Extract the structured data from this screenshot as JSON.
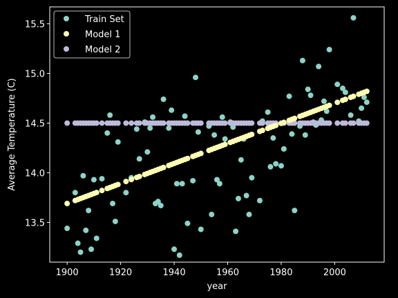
{
  "chart_data": {
    "type": "scatter",
    "xlabel": "year",
    "ylabel": "Average Temperature (C)",
    "xlim": [
      1893.5,
      2018.5
    ],
    "ylim": [
      13.1,
      15.67
    ],
    "xticks": [
      1900,
      1920,
      1940,
      1960,
      1980,
      2000
    ],
    "yticks": [
      13.5,
      14.0,
      14.5,
      15.0,
      15.5
    ],
    "xtick_labels": [
      "1900",
      "1920",
      "1940",
      "1960",
      "1980",
      "2000"
    ],
    "ytick_labels": [
      "13.5",
      "14.0",
      "14.5",
      "15.0",
      "15.5"
    ],
    "grid": false,
    "legend": {
      "placement": "top-left"
    },
    "series": [
      {
        "name": "Train Set",
        "color": "#8dd3c7",
        "points": [
          [
            1900,
            13.44
          ],
          [
            1903,
            13.8
          ],
          [
            1904,
            13.29
          ],
          [
            1905,
            13.2
          ],
          [
            1906,
            13.97
          ],
          [
            1907,
            13.42
          ],
          [
            1908,
            13.62
          ],
          [
            1909,
            13.23
          ],
          [
            1910,
            13.93
          ],
          [
            1911,
            13.34
          ],
          [
            1913,
            13.94
          ],
          [
            1915,
            14.4
          ],
          [
            1916,
            14.58
          ],
          [
            1917,
            13.69
          ],
          [
            1918,
            13.51
          ],
          [
            1919,
            14.31
          ],
          [
            1922,
            13.8
          ],
          [
            1924,
            13.95
          ],
          [
            1926,
            14.44
          ],
          [
            1927,
            14.14
          ],
          [
            1929,
            14.51
          ],
          [
            1930,
            14.21
          ],
          [
            1931,
            14.45
          ],
          [
            1932,
            14.56
          ],
          [
            1933,
            13.69
          ],
          [
            1934,
            13.71
          ],
          [
            1935,
            13.67
          ],
          [
            1936,
            14.74
          ],
          [
            1938,
            14.45
          ],
          [
            1939,
            14.63
          ],
          [
            1940,
            13.23
          ],
          [
            1941,
            13.89
          ],
          [
            1942,
            13.17
          ],
          [
            1943,
            13.89
          ],
          [
            1944,
            14.57
          ],
          [
            1945,
            13.49
          ],
          [
            1947,
            13.92
          ],
          [
            1948,
            14.96
          ],
          [
            1949,
            14.41
          ],
          [
            1950,
            13.43
          ],
          [
            1953,
            14.47
          ],
          [
            1954,
            13.58
          ],
          [
            1955,
            14.38
          ],
          [
            1956,
            13.93
          ],
          [
            1957,
            13.89
          ],
          [
            1958,
            14.56
          ],
          [
            1959,
            14.34
          ],
          [
            1961,
            14.51
          ],
          [
            1962,
            14.46
          ],
          [
            1963,
            13.41
          ],
          [
            1964,
            13.74
          ],
          [
            1965,
            14.13
          ],
          [
            1966,
            14.34
          ],
          [
            1967,
            13.77
          ],
          [
            1968,
            13.58
          ],
          [
            1969,
            13.95
          ],
          [
            1972,
            13.72
          ],
          [
            1973,
            14.52
          ],
          [
            1975,
            14.61
          ],
          [
            1976,
            14.06
          ],
          [
            1977,
            14.35
          ],
          [
            1978,
            14.09
          ],
          [
            1980,
            14.07
          ],
          [
            1981,
            14.24
          ],
          [
            1983,
            14.77
          ],
          [
            1984,
            14.39
          ],
          [
            1985,
            13.62
          ],
          [
            1987,
            14.47
          ],
          [
            1988,
            15.13
          ],
          [
            1989,
            14.38
          ],
          [
            1990,
            14.84
          ],
          [
            1991,
            14.78
          ],
          [
            1992,
            14.51
          ],
          [
            1993,
            14.48
          ],
          [
            1994,
            15.07
          ],
          [
            1995,
            14.53
          ],
          [
            1996,
            14.72
          ],
          [
            1997,
            14.62
          ],
          [
            1998,
            15.24
          ],
          [
            2001,
            14.89
          ],
          [
            2003,
            14.85
          ],
          [
            2004,
            14.81
          ],
          [
            2006,
            14.58
          ],
          [
            2007,
            15.56
          ],
          [
            2009,
            14.52
          ],
          [
            2010,
            14.65
          ],
          [
            2011,
            14.76
          ],
          [
            2012,
            14.71
          ]
        ]
      },
      {
        "name": "Model 1",
        "color": "#ffffb3",
        "line_fit": {
          "x_start": 1900,
          "x_end": 2012,
          "y_start": 13.69,
          "y_end": 14.82
        },
        "x": [
          1900,
          1903,
          1904,
          1905,
          1906,
          1907,
          1908,
          1909,
          1910,
          1911,
          1913,
          1915,
          1916,
          1917,
          1918,
          1919,
          1922,
          1924,
          1926,
          1927,
          1929,
          1930,
          1931,
          1932,
          1933,
          1934,
          1935,
          1936,
          1938,
          1939,
          1940,
          1941,
          1942,
          1943,
          1944,
          1945,
          1947,
          1948,
          1949,
          1950,
          1953,
          1954,
          1955,
          1956,
          1957,
          1958,
          1959,
          1961,
          1962,
          1963,
          1964,
          1965,
          1966,
          1967,
          1968,
          1969,
          1972,
          1973,
          1975,
          1976,
          1977,
          1978,
          1980,
          1981,
          1983,
          1984,
          1985,
          1987,
          1988,
          1989,
          1990,
          1991,
          1992,
          1993,
          1994,
          1995,
          1996,
          1997,
          1998,
          2001,
          2003,
          2004,
          2006,
          2007,
          2009,
          2010,
          2011,
          2012
        ]
      },
      {
        "name": "Model 2",
        "color": "#bebada",
        "constant_y": 14.5,
        "x": [
          1900,
          1903,
          1904,
          1905,
          1906,
          1907,
          1908,
          1909,
          1910,
          1911,
          1913,
          1915,
          1916,
          1917,
          1918,
          1919,
          1922,
          1924,
          1926,
          1927,
          1929,
          1930,
          1931,
          1932,
          1933,
          1934,
          1935,
          1936,
          1938,
          1939,
          1940,
          1941,
          1942,
          1943,
          1944,
          1945,
          1947,
          1948,
          1949,
          1950,
          1953,
          1954,
          1955,
          1956,
          1957,
          1958,
          1959,
          1961,
          1962,
          1963,
          1964,
          1965,
          1966,
          1967,
          1968,
          1969,
          1972,
          1973,
          1975,
          1976,
          1977,
          1978,
          1980,
          1981,
          1983,
          1984,
          1985,
          1987,
          1988,
          1989,
          1990,
          1991,
          1992,
          1993,
          1994,
          1995,
          1996,
          1997,
          1998,
          2001,
          2003,
          2004,
          2006,
          2007,
          2009,
          2010,
          2011,
          2012
        ]
      }
    ]
  }
}
